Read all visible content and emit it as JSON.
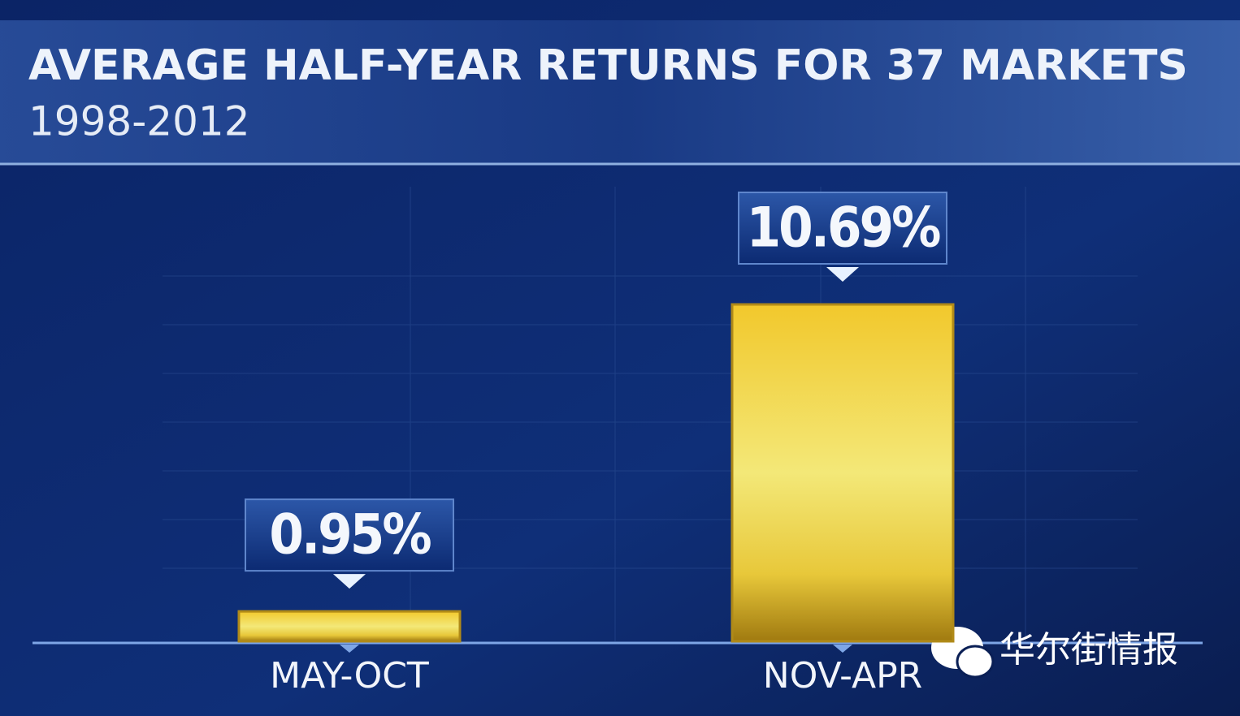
{
  "chart_data": {
    "type": "bar",
    "title": "AVERAGE HALF-YEAR RETURNS FOR 37 MARKETS",
    "subtitle": "1998-2012",
    "categories": [
      "MAY-OCT",
      "NOV-APR"
    ],
    "values": [
      0.95,
      10.69
    ],
    "value_labels": [
      "0.95%",
      "10.69%"
    ],
    "color": "#f0d230",
    "watermark": "华尔街情报"
  }
}
